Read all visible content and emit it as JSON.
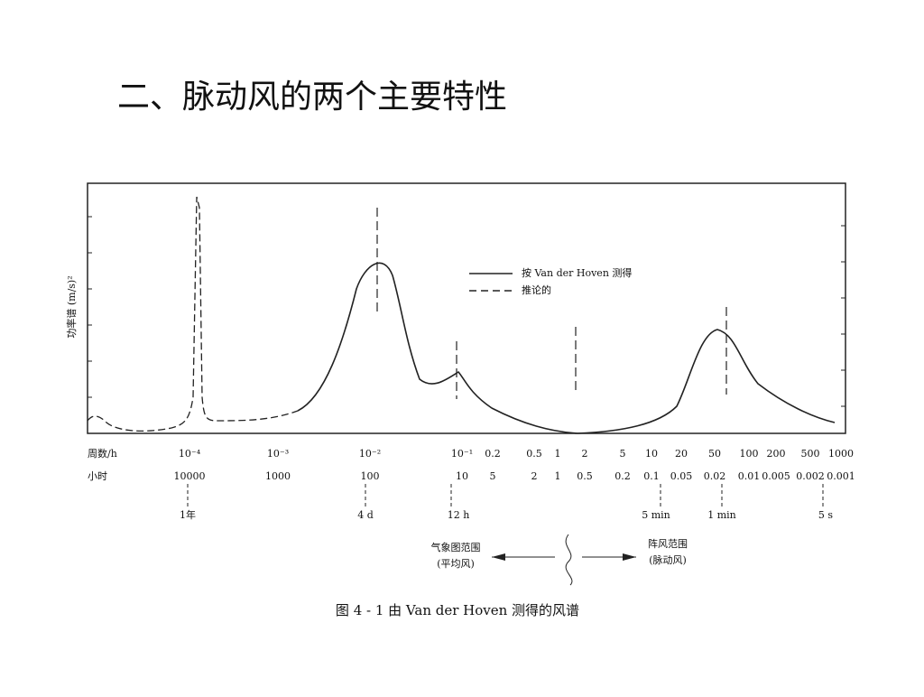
{
  "header": {
    "title": "二、脉动风的两个主要特性"
  },
  "figure": {
    "y_label": "功率谱 (m/s)²",
    "legend": [
      "按 Van der Hoven 测得",
      "推论的"
    ],
    "freq_axis": {
      "label": "周数/h",
      "ticks": [
        "10⁻⁴",
        "10⁻³",
        "10⁻²",
        "10⁻¹",
        "0.2",
        "0.5",
        "1",
        "2",
        "5",
        "10",
        "20",
        "50",
        "100",
        "200",
        "500",
        "1000"
      ]
    },
    "hour_axis": {
      "label": "小时",
      "ticks": [
        "10000",
        "1000",
        "100",
        "10",
        "5",
        "2",
        "1",
        "0.5",
        "0.2",
        "0.1",
        "0.05",
        "0.02",
        "0.01",
        "0.005",
        "0.002",
        "0.001"
      ]
    },
    "markers": [
      "1年",
      "4 d",
      "12 h",
      "5 min",
      "1 min",
      "5 s"
    ],
    "ranges": {
      "left": [
        "气象图范围",
        "(平均风)"
      ],
      "right": [
        "阵风范围",
        "(脉动风)"
      ]
    },
    "caption": "图 4 - 1    由 Van der Hoven 测得的风谱"
  }
}
